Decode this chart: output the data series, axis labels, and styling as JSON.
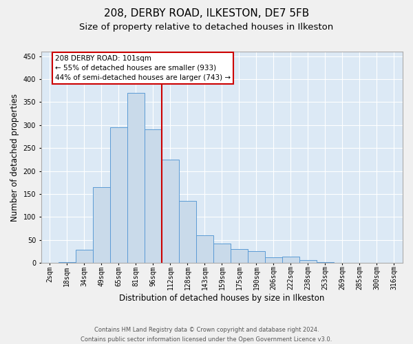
{
  "title": "208, DERBY ROAD, ILKESTON, DE7 5FB",
  "subtitle": "Size of property relative to detached houses in Ilkeston",
  "xlabel": "Distribution of detached houses by size in Ilkeston",
  "ylabel": "Number of detached properties",
  "footer_line1": "Contains HM Land Registry data © Crown copyright and database right 2024.",
  "footer_line2": "Contains public sector information licensed under the Open Government Licence v3.0.",
  "bar_labels": [
    "2sqm",
    "18sqm",
    "34sqm",
    "49sqm",
    "65sqm",
    "81sqm",
    "96sqm",
    "112sqm",
    "128sqm",
    "143sqm",
    "159sqm",
    "175sqm",
    "190sqm",
    "206sqm",
    "222sqm",
    "238sqm",
    "253sqm",
    "269sqm",
    "285sqm",
    "300sqm",
    "316sqm"
  ],
  "bar_values": [
    0,
    2,
    28,
    165,
    295,
    370,
    290,
    225,
    135,
    60,
    42,
    30,
    25,
    12,
    14,
    6,
    2,
    0,
    0,
    0,
    0
  ],
  "bar_color": "#c9daea",
  "bar_edgecolor": "#5b9bd5",
  "vline_color": "#cc0000",
  "vline_pos": 6.5,
  "annotation_line1": "208 DERBY ROAD: 101sqm",
  "annotation_line2": "← 55% of detached houses are smaller (933)",
  "annotation_line3": "44% of semi-detached houses are larger (743) →",
  "ylim_max": 460,
  "yticks": [
    0,
    50,
    100,
    150,
    200,
    250,
    300,
    350,
    400,
    450
  ],
  "plot_bg_color": "#dce9f5",
  "fig_bg_color": "#f0f0f0",
  "grid_color": "#ffffff",
  "title_fontsize": 11,
  "subtitle_fontsize": 9.5,
  "tick_fontsize": 7,
  "ylabel_fontsize": 8.5,
  "xlabel_fontsize": 8.5,
  "ann_fontsize": 7.5,
  "footer_fontsize": 6
}
